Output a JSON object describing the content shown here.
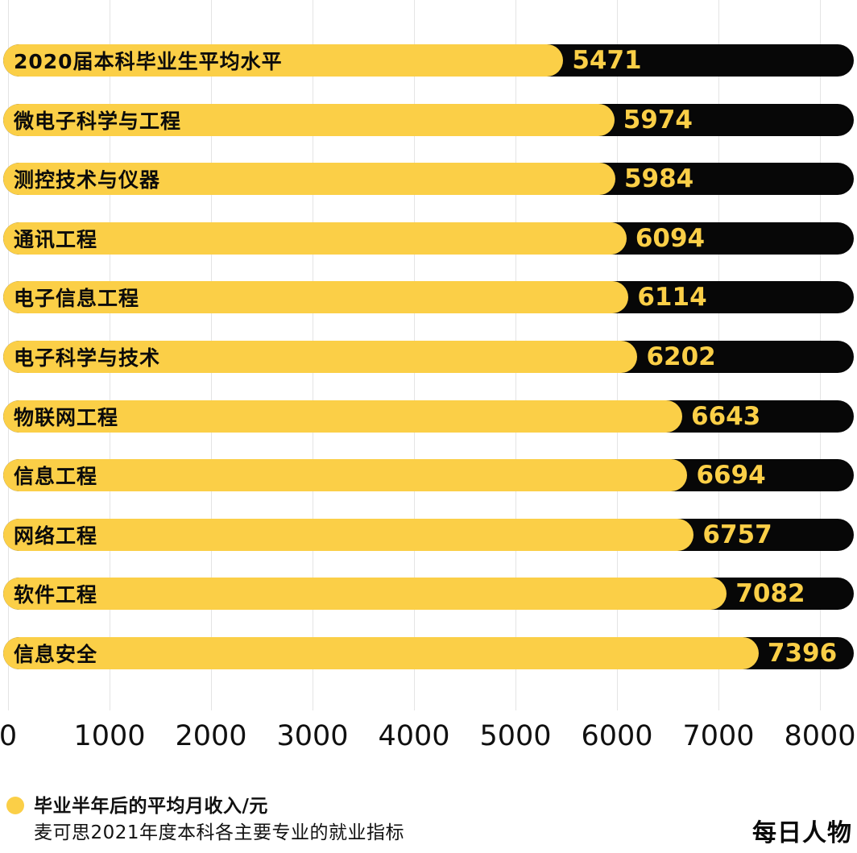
{
  "chart_data": {
    "type": "bar",
    "orientation": "horizontal",
    "title": "",
    "categories": [
      "2020届本科毕业生平均水平",
      "微电子科学与工程",
      "测控技术与仪器",
      "通讯工程",
      "电子信息工程",
      "电子科学与技术",
      "物联网工程",
      "信息工程",
      "网络工程",
      "软件工程",
      "信息安全"
    ],
    "values": [
      5471,
      5974,
      5984,
      6094,
      6114,
      6202,
      6643,
      6694,
      6757,
      7082,
      7396
    ],
    "x_ticks": [
      0,
      1000,
      2000,
      3000,
      4000,
      5000,
      6000,
      7000,
      8000
    ],
    "xlim": [
      0,
      8350
    ],
    "grid": "vertical",
    "legend": "毕业半年后的平均月收入/元",
    "legend_position": "bottom-left",
    "source": "麦可思2021年度本科各主要专业的就业指标",
    "colors": {
      "bar": "#fbcf47",
      "track": "#070707",
      "value_text": "#fbcf47",
      "category_text": "#0b0b0b",
      "gridline": "#e4e4e4",
      "axis_text": "#101010"
    }
  },
  "footer": {
    "logo_text": "每日人物"
  }
}
